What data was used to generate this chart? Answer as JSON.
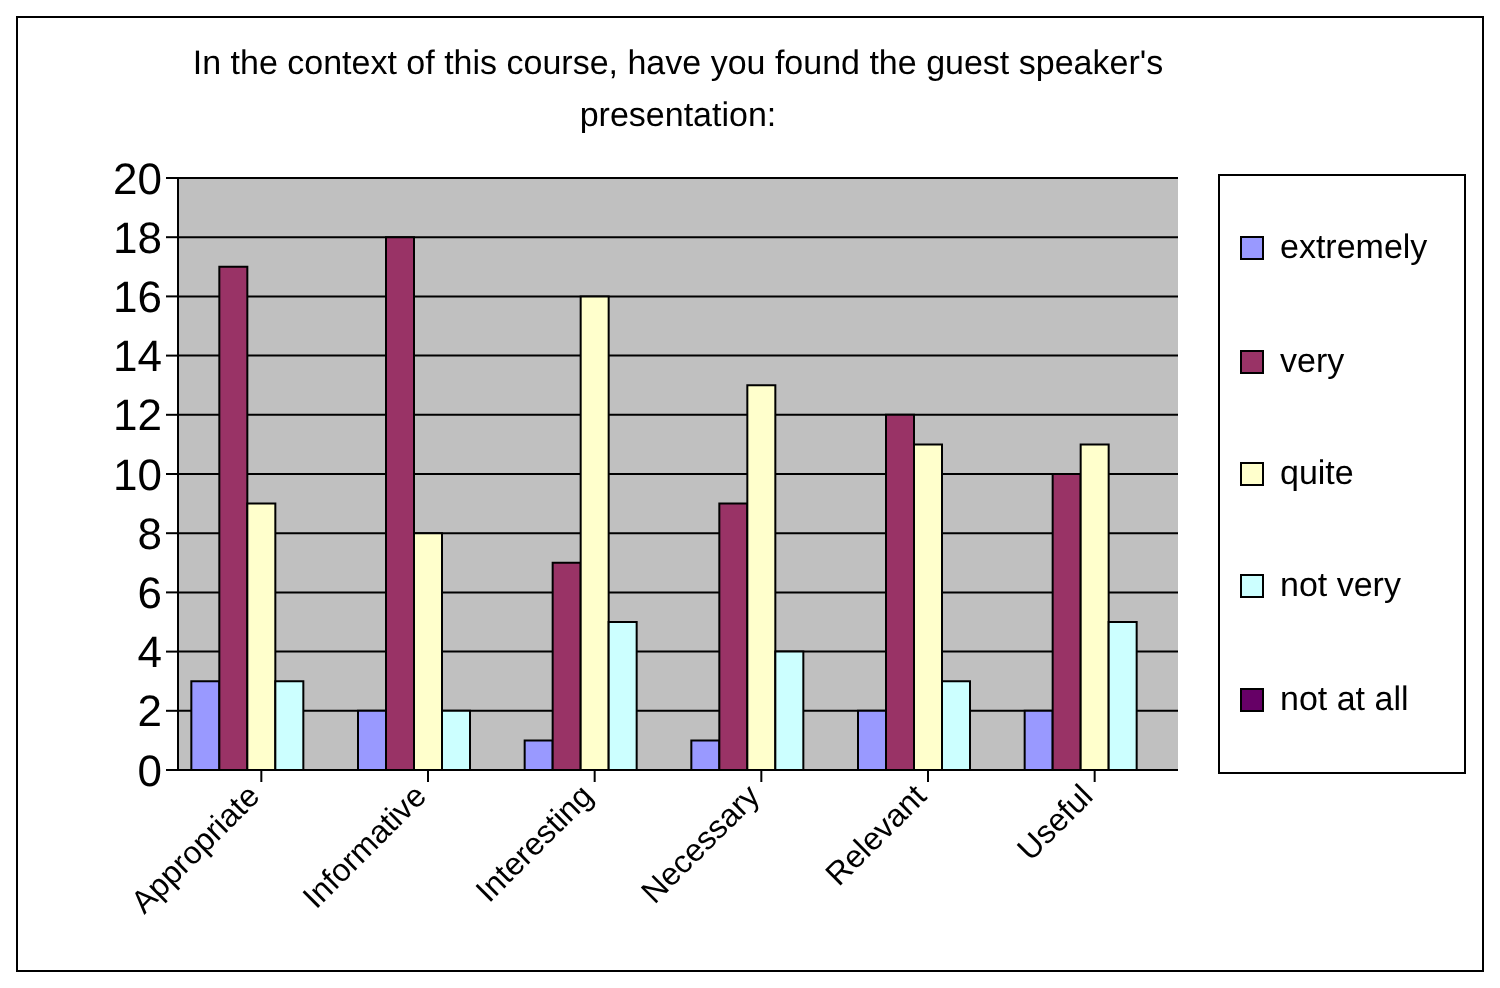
{
  "chart_data": {
    "type": "bar",
    "title": "In the context of this course, have you found the guest speaker's presentation:",
    "categories": [
      "Appropriate",
      "Informative",
      "Interesting",
      "Necessary",
      "Relevant",
      "Useful"
    ],
    "series": [
      {
        "name": "extremely",
        "color": "#9999ff",
        "values": [
          3,
          2,
          1,
          1,
          2,
          2
        ]
      },
      {
        "name": "very",
        "color": "#993366",
        "values": [
          17,
          18,
          7,
          9,
          12,
          10
        ]
      },
      {
        "name": "quite",
        "color": "#ffffcc",
        "values": [
          9,
          8,
          16,
          13,
          11,
          11
        ]
      },
      {
        "name": "not very",
        "color": "#ccffff",
        "values": [
          3,
          2,
          5,
          4,
          3,
          5
        ]
      },
      {
        "name": "not at all",
        "color": "#660066",
        "values": [
          0,
          0,
          0,
          0,
          0,
          0
        ]
      }
    ],
    "ylim": [
      0,
      20
    ],
    "yticks": [
      0,
      2,
      4,
      6,
      8,
      10,
      12,
      14,
      16,
      18,
      20
    ],
    "grid": "y",
    "legend": "right"
  }
}
